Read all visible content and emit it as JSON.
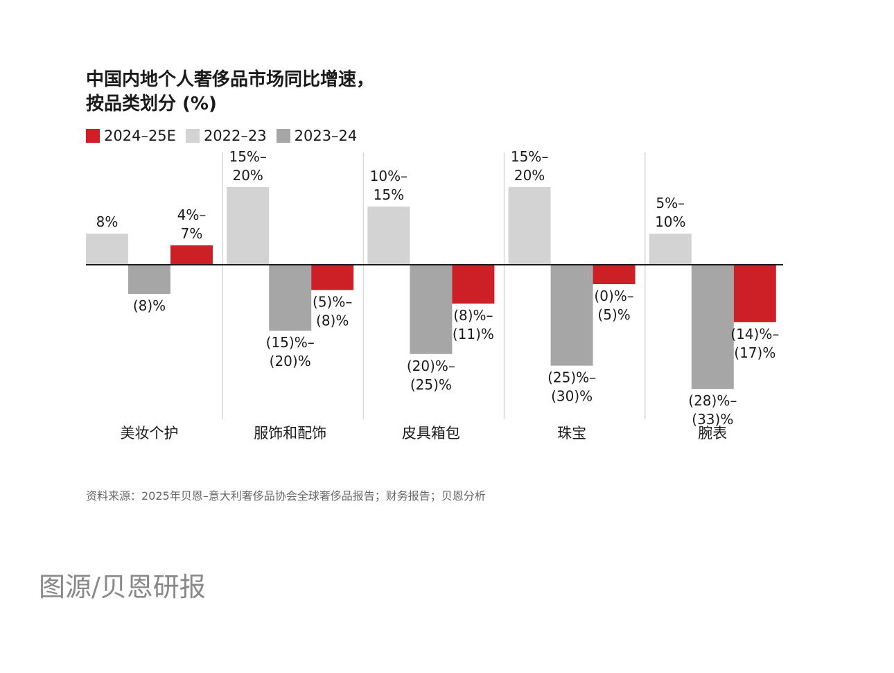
{
  "chart_data": {
    "type": "bar",
    "title_line1": "中国内地个人奢侈品市场同比增速，",
    "title_line2": "按品类划分 (%)",
    "categories": [
      "美妆个护",
      "服饰和配饰",
      "皮具箱包",
      "珠宝",
      "腕表"
    ],
    "series": [
      {
        "name": "2022–23",
        "color": "#d3d3d3",
        "values": [
          8,
          20,
          15,
          20,
          8
        ],
        "labels": [
          [
            "8%"
          ],
          [
            "15%–",
            "20%"
          ],
          [
            "10%–",
            "15%"
          ],
          [
            "15%–",
            "20%"
          ],
          [
            "5%–",
            "10%"
          ]
        ]
      },
      {
        "name": "2023–24",
        "color": "#a6a6a6",
        "values": [
          -7.5,
          -17,
          -23,
          -26,
          -32
        ],
        "labels": [
          [
            "(8)%"
          ],
          [
            "(15)%–",
            "(20)%"
          ],
          [
            "(20)%–",
            "(25)%"
          ],
          [
            "(25)%–",
            "(30)%"
          ],
          [
            "(28)%–",
            "(33)%"
          ]
        ]
      },
      {
        "name": "2024–25E",
        "color": "#cc1f26",
        "values": [
          5,
          -6.5,
          -10,
          -5,
          -14.8
        ],
        "labels": [
          [
            "4%–",
            "7%"
          ],
          [
            "(5)%–",
            "(8)%"
          ],
          [
            "(8)%–",
            "(11)%"
          ],
          [
            "(0)%–",
            "(5)%"
          ],
          [
            "(14)%–",
            "(17)%"
          ]
        ]
      }
    ],
    "legend_order": [
      "2024–25E",
      "2022–23",
      "2023–24"
    ],
    "ylim": [
      -40,
      30
    ],
    "grid": false
  },
  "source": "资料来源：2025年贝恩–意大利奢侈品协会全球奢侈品报告；财务报告；贝恩分析",
  "credit": "图源/贝恩研报"
}
